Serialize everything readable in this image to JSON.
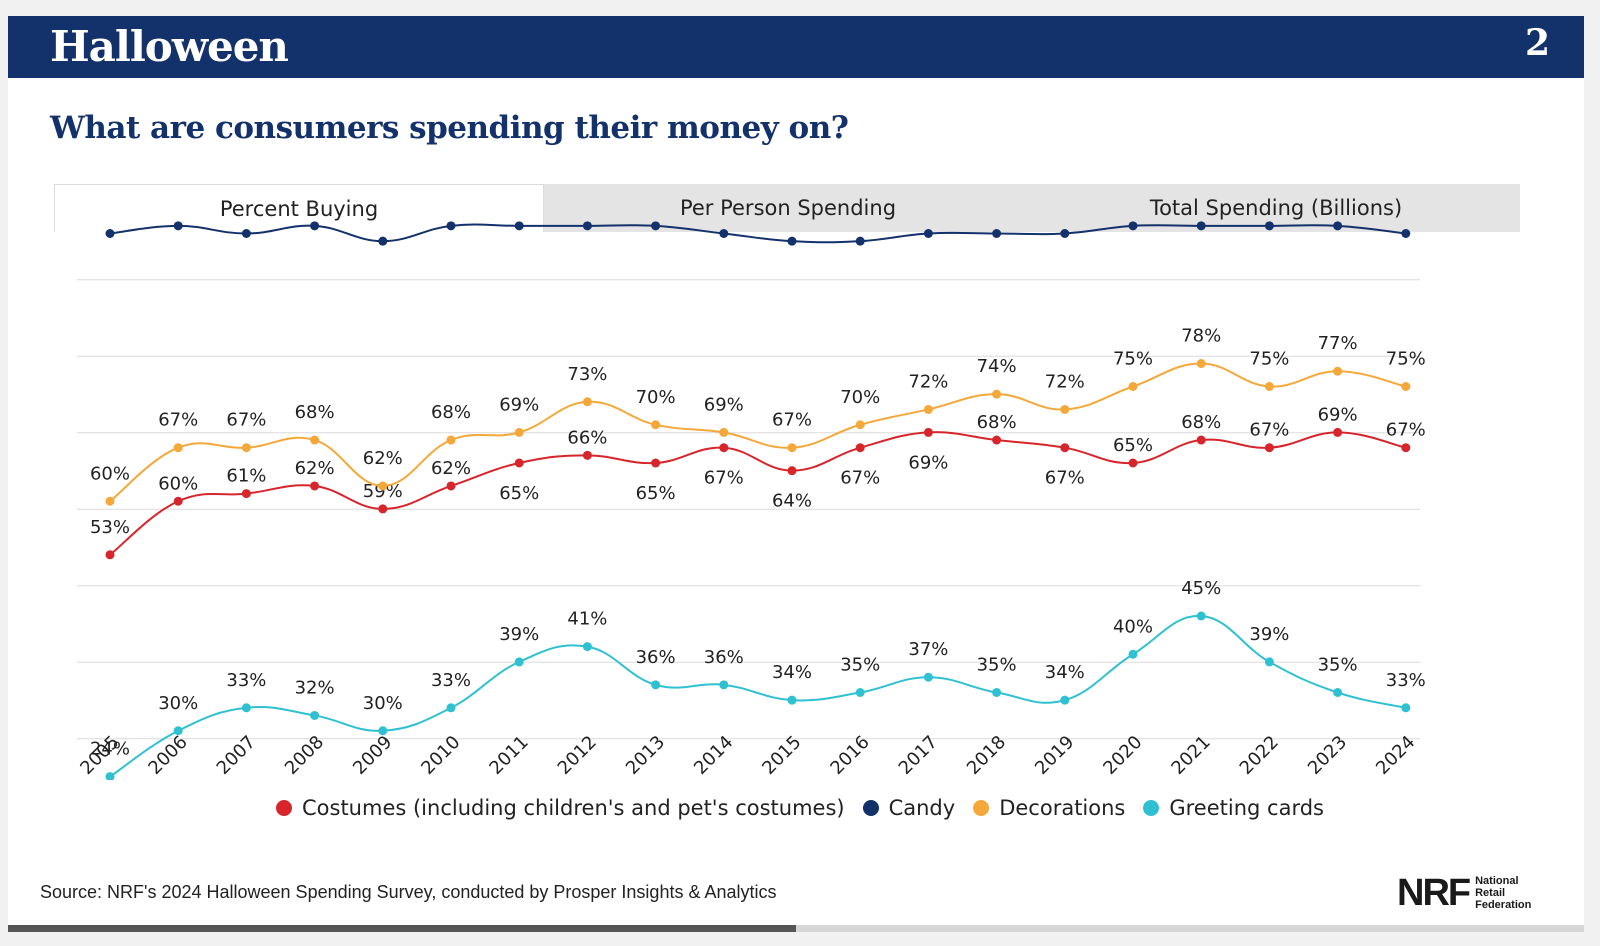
{
  "header": {
    "title": "Halloween",
    "page_number": "2"
  },
  "question": "What are consumers spending their money on?",
  "tabs": [
    {
      "label": "Percent Buying",
      "active": true
    },
    {
      "label": "Per Person Spending",
      "active": false
    },
    {
      "label": "Total Spending (Billions)",
      "active": false
    }
  ],
  "chart_data": {
    "type": "line",
    "x": [
      "2005",
      "2006",
      "2007",
      "2008",
      "2009",
      "2010",
      "2011",
      "2012",
      "2013",
      "2014",
      "2015",
      "2016",
      "2017",
      "2018",
      "2019",
      "2020",
      "2021",
      "2022",
      "2023",
      "2024"
    ],
    "ylim": [
      20,
      100
    ],
    "grid": true,
    "legend_position": "bottom",
    "series": [
      {
        "name": "Costumes (including children's and pet's costumes)",
        "color": "#d7252c",
        "values": [
          53,
          60,
          61,
          62,
          59,
          62,
          65,
          66,
          65,
          67,
          64,
          67,
          69,
          68,
          67,
          65,
          68,
          67,
          69,
          67
        ]
      },
      {
        "name": "Candy",
        "color": "#13316b",
        "values": [
          95,
          96,
          95,
          96,
          94,
          96,
          96,
          96,
          96,
          95,
          94,
          94,
          95,
          95,
          95,
          96,
          96,
          96,
          96,
          95
        ]
      },
      {
        "name": "Decorations",
        "color": "#f5a83a",
        "values": [
          60,
          67,
          67,
          68,
          62,
          68,
          69,
          73,
          70,
          69,
          67,
          70,
          72,
          74,
          72,
          75,
          78,
          75,
          77,
          75
        ]
      },
      {
        "name": "Greeting cards",
        "color": "#2fc1d1",
        "values": [
          24,
          30,
          33,
          32,
          30,
          33,
          39,
          41,
          36,
          36,
          34,
          35,
          37,
          35,
          34,
          40,
          45,
          39,
          35,
          33
        ]
      }
    ]
  },
  "source": "Source: NRF's 2024 Halloween Spending Survey, conducted by Prosper Insights & Analytics",
  "logo": {
    "mark": "NRF",
    "line1": "National",
    "line2": "Retail",
    "line3": "Federation"
  },
  "progress": 0.5
}
